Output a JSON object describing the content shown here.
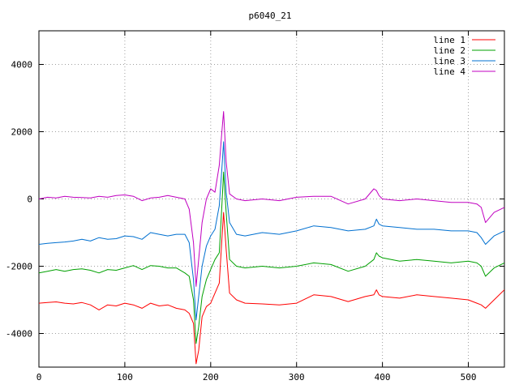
{
  "chart_data": {
    "type": "line",
    "title": "p6040_21",
    "xlabel": "",
    "ylabel": "",
    "xlim": [
      0,
      542
    ],
    "ylim": [
      -5000,
      5000
    ],
    "x_ticks": [
      0,
      100,
      200,
      300,
      400,
      500
    ],
    "y_ticks": [
      -4000,
      -2000,
      0,
      2000,
      4000
    ],
    "x_tick_labels": [
      "0",
      "100",
      "200",
      "300",
      "400",
      "500"
    ],
    "y_tick_labels": [
      "-4000",
      "-2000",
      "0",
      "2000",
      "4000"
    ],
    "grid": true,
    "legend_position": "top-right",
    "x": [
      0,
      10,
      20,
      30,
      40,
      50,
      60,
      70,
      80,
      90,
      100,
      110,
      120,
      130,
      140,
      150,
      160,
      170,
      175,
      180,
      183,
      186,
      190,
      195,
      200,
      205,
      210,
      213,
      215,
      218,
      222,
      230,
      240,
      260,
      280,
      300,
      320,
      340,
      360,
      380,
      390,
      393,
      396,
      400,
      420,
      440,
      460,
      480,
      500,
      510,
      515,
      520,
      530,
      542
    ],
    "series": [
      {
        "name": "line 1",
        "color": "#ff0000",
        "values": [
          -3100,
          -3080,
          -3060,
          -3100,
          -3120,
          -3080,
          -3150,
          -3300,
          -3150,
          -3180,
          -3100,
          -3150,
          -3250,
          -3100,
          -3180,
          -3150,
          -3250,
          -3300,
          -3400,
          -3700,
          -4900,
          -4500,
          -3500,
          -3200,
          -3100,
          -2800,
          -2500,
          -1200,
          -400,
          -1500,
          -2800,
          -3000,
          -3100,
          -3120,
          -3150,
          -3100,
          -2850,
          -2900,
          -3050,
          -2900,
          -2850,
          -2700,
          -2850,
          -2900,
          -2950,
          -2850,
          -2900,
          -2950,
          -3000,
          -3100,
          -3150,
          -3250,
          -3000,
          -2700
        ]
      },
      {
        "name": "line 2",
        "color": "#00a000",
        "values": [
          -2200,
          -2150,
          -2100,
          -2150,
          -2100,
          -2080,
          -2120,
          -2200,
          -2100,
          -2120,
          -2050,
          -1980,
          -2100,
          -1980,
          -2000,
          -2050,
          -2050,
          -2200,
          -2300,
          -3000,
          -4300,
          -3800,
          -2900,
          -2400,
          -2100,
          -1800,
          -1600,
          -200,
          800,
          -400,
          -1800,
          -2000,
          -2050,
          -2000,
          -2050,
          -2000,
          -1900,
          -1950,
          -2150,
          -2000,
          -1800,
          -1600,
          -1700,
          -1750,
          -1850,
          -1800,
          -1850,
          -1900,
          -1850,
          -1900,
          -2000,
          -2300,
          -2050,
          -1900
        ]
      },
      {
        "name": "line 3",
        "color": "#0070d0",
        "values": [
          -1350,
          -1320,
          -1300,
          -1280,
          -1250,
          -1200,
          -1250,
          -1150,
          -1200,
          -1180,
          -1100,
          -1120,
          -1200,
          -1000,
          -1050,
          -1100,
          -1050,
          -1050,
          -1300,
          -2400,
          -3600,
          -2900,
          -2000,
          -1400,
          -1100,
          -900,
          -200,
          900,
          1700,
          200,
          -700,
          -1050,
          -1100,
          -1000,
          -1050,
          -950,
          -800,
          -850,
          -950,
          -900,
          -800,
          -600,
          -750,
          -800,
          -850,
          -900,
          -900,
          -950,
          -950,
          -1000,
          -1150,
          -1350,
          -1100,
          -950
        ]
      },
      {
        "name": "line 4",
        "color": "#c000c0",
        "values": [
          0,
          50,
          30,
          80,
          50,
          40,
          30,
          80,
          50,
          100,
          120,
          80,
          -50,
          30,
          50,
          100,
          50,
          0,
          -300,
          -1300,
          -2600,
          -1800,
          -700,
          0,
          300,
          200,
          1000,
          2000,
          2600,
          1100,
          150,
          0,
          -50,
          0,
          -50,
          50,
          80,
          80,
          -150,
          0,
          300,
          250,
          100,
          0,
          -50,
          0,
          -50,
          -100,
          -100,
          -150,
          -250,
          -700,
          -400,
          -250
        ]
      }
    ]
  }
}
